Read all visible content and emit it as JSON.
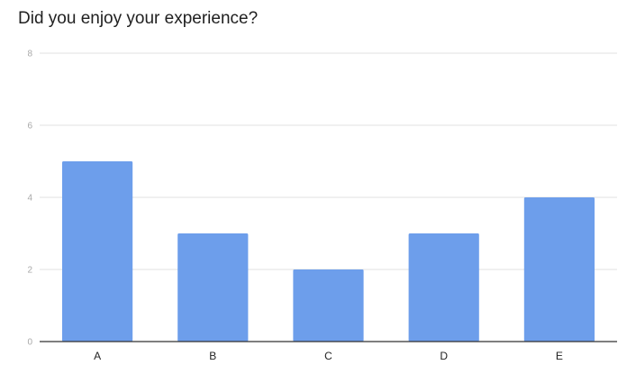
{
  "chart_data": {
    "type": "bar",
    "title": "Did you enjoy your experience?",
    "xlabel": "",
    "ylabel": "",
    "categories": [
      "A",
      "B",
      "C",
      "D",
      "E"
    ],
    "values": [
      5,
      3,
      2,
      3,
      4
    ],
    "yticks": [
      0,
      2,
      4,
      6,
      8
    ],
    "ylim": [
      0,
      8
    ],
    "grid": true,
    "legend": "none",
    "bar_color": "#6d9eeb",
    "gridline_color": "#e0e0e0",
    "baseline_color": "#333333"
  }
}
